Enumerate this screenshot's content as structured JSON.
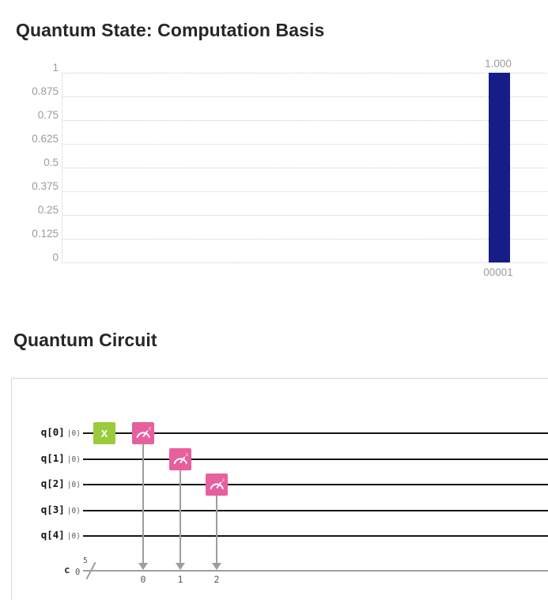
{
  "state_section": {
    "title": "Quantum State: Computation Basis"
  },
  "chart_data": {
    "type": "bar",
    "title": "Quantum State: Computation Basis",
    "categories": [
      "00001"
    ],
    "values": [
      1.0
    ],
    "value_labels": [
      "1.000"
    ],
    "xlabel": "",
    "ylabel": "",
    "ylim": [
      0,
      1
    ],
    "yticks": [
      "1",
      "0.875",
      "0.75",
      "0.625",
      "0.5",
      "0.375",
      "0.25",
      "0.125",
      "0"
    ],
    "grid": "horizontal-dotted",
    "legend": "none",
    "bar_color": "#161d86",
    "axis_label_color": "#9b9b9b",
    "gridline_color": "#cccccc"
  },
  "circuit_section": {
    "title": "Quantum Circuit",
    "qubits": [
      {
        "label": "q[0]",
        "ket": "|0⟩"
      },
      {
        "label": "q[1]",
        "ket": "|0⟩"
      },
      {
        "label": "q[2]",
        "ket": "|0⟩"
      },
      {
        "label": "q[3]",
        "ket": "|0⟩"
      },
      {
        "label": "q[4]",
        "ket": "|0⟩"
      }
    ],
    "gates": [
      {
        "type": "x",
        "label": "X",
        "qubit": 0,
        "column": 0
      },
      {
        "type": "measure",
        "label": "",
        "qubit": 0,
        "column": 1,
        "clbit": "0"
      },
      {
        "type": "measure",
        "label": "",
        "qubit": 1,
        "column": 2,
        "clbit": "1"
      },
      {
        "type": "measure",
        "label": "",
        "qubit": 2,
        "column": 3,
        "clbit": "2"
      }
    ],
    "measure_superscript": "z",
    "classical": {
      "name": "c",
      "start_index": "0",
      "size": "5"
    },
    "colors": {
      "x_gate": "#9acb3b",
      "measure_gate": "#e75f9d",
      "quantum_wire": "#161616",
      "classical_wire": "#9e9e9e"
    }
  }
}
